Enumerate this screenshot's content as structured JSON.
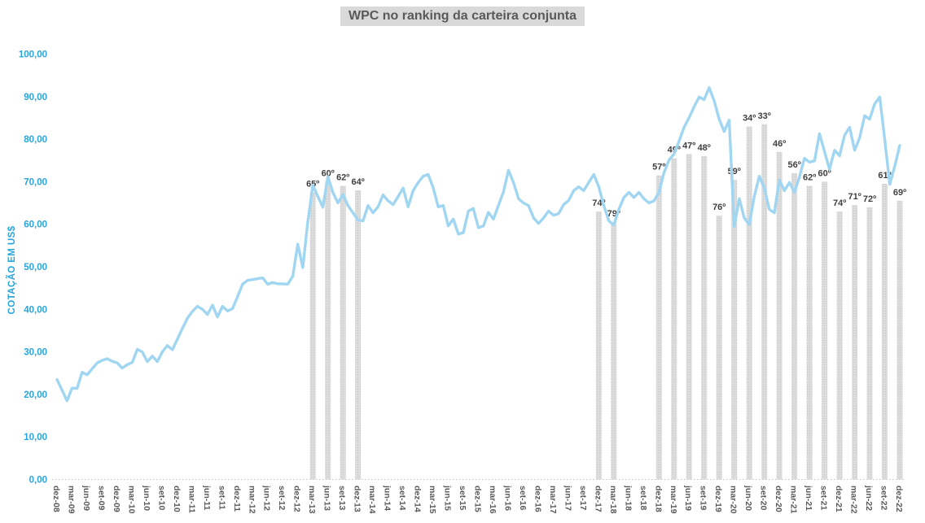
{
  "chart_data": {
    "type": "line",
    "title": "WPC no ranking da carteira conjunta",
    "ylabel": "COTAÇÃO EM US$",
    "ylim": [
      0,
      100
    ],
    "grid": false,
    "legend": "none",
    "y_tick_labels": [
      "0,00",
      "10,00",
      "20,00",
      "30,00",
      "40,00",
      "50,00",
      "60,00",
      "70,00",
      "80,00",
      "90,00",
      "100,00"
    ],
    "x_tick_labels": [
      "dez-08",
      "mar-09",
      "jun-09",
      "set-09",
      "dez-09",
      "mar-10",
      "jun-10",
      "set-10",
      "dez-10",
      "mar-11",
      "jun-11",
      "set-11",
      "dez-11",
      "mar-12",
      "jun-12",
      "set-12",
      "dez-12",
      "mar-13",
      "jun-13",
      "set-13",
      "dez-13",
      "mar-14",
      "jun-14",
      "set-14",
      "dez-14",
      "mar-15",
      "jun-15",
      "set-15",
      "dez-15",
      "mar-16",
      "jun-16",
      "set-16",
      "dez-16",
      "mar-17",
      "jun-17",
      "set-17",
      "dez-17",
      "mar-18",
      "jun-18",
      "set-18",
      "dez-18",
      "mar-19",
      "jun-19",
      "set-19",
      "dez-19",
      "mar-20",
      "jun-20",
      "set-20",
      "dez-20",
      "mar-21",
      "jun-21",
      "set-21",
      "dez-21",
      "mar-22",
      "jun-22",
      "set-22",
      "dez-22"
    ],
    "line_series": {
      "name": "cotacao-wpc-usd",
      "frequency": "monthly",
      "start": "dez-08",
      "end": "dez-22",
      "values": [
        23.5,
        21,
        18.5,
        21.5,
        21.4,
        25.2,
        24.6,
        26,
        27.4,
        28,
        28.4,
        27.8,
        27.4,
        26.2,
        27,
        27.5,
        30.6,
        30,
        27.7,
        29,
        27.7,
        30,
        31.5,
        30.5,
        33,
        35.5,
        37.9,
        39.5,
        40.7,
        40,
        38.8,
        41,
        38.2,
        40.7,
        39.6,
        40.2,
        43,
        45.9,
        46.8,
        47,
        47.2,
        47.4,
        45.9,
        46.3,
        46,
        46,
        45.9,
        47.8,
        55.3,
        49.8,
        60.6,
        69.2,
        66.5,
        64,
        71.2,
        67.5,
        65,
        67,
        64.4,
        62.7,
        61,
        60.8,
        64.4,
        62.7,
        64.1,
        66.9,
        65.5,
        64.6,
        66.5,
        68.5,
        64.1,
        67.9,
        69.8,
        71.3,
        71.7,
        68.5,
        64.1,
        64.4,
        59.6,
        61.2,
        57.7,
        58,
        63.1,
        63.7,
        59.2,
        59.6,
        62.8,
        61.2,
        64.4,
        67.6,
        72.7,
        69.8,
        66,
        65,
        64.4,
        61.5,
        60.2,
        61.5,
        63.1,
        62.1,
        62.5,
        64.6,
        65.6,
        67.9,
        68.8,
        67.9,
        69.8,
        71.7,
        68.8,
        64.4,
        60.8,
        59.8,
        63.5,
        66.3,
        67.5,
        66.3,
        67.5,
        66,
        65,
        65.5,
        67.5,
        72.1,
        75.1,
        76.5,
        79.5,
        82.8,
        85,
        87.6,
        89.9,
        89.3,
        92.1,
        89,
        84.7,
        81.8,
        84.5,
        59.5,
        66,
        61.5,
        59.9,
        66.5,
        71.3,
        68.5,
        63.5,
        62.7,
        70.4,
        67.9,
        69.8,
        67.5,
        71.1,
        75.5,
        74.6,
        74.9,
        81.3,
        77.1,
        72.9,
        77.4,
        76.1,
        80.9,
        82.8,
        77.4,
        80.3,
        85.5,
        84.7,
        88.3,
        89.9,
        80,
        69.4,
        73.6,
        78.5
      ]
    },
    "ranking_bars": {
      "name": "posicao-no-ranking",
      "note": "barras trimestrais; altura no eixo de cotação = 100 - ranking/2; rótulo = posição no ranking",
      "points": [
        {
          "x": "mar-13",
          "rank": 65,
          "label": "65º"
        },
        {
          "x": "jun-13",
          "rank": 60,
          "label": "60º"
        },
        {
          "x": "set-13",
          "rank": 62,
          "label": "62º"
        },
        {
          "x": "dez-13",
          "rank": 64,
          "label": "64º"
        },
        {
          "x": "dez-17",
          "rank": 74,
          "label": "74º"
        },
        {
          "x": "mar-18",
          "rank": 79,
          "label": "79º"
        },
        {
          "x": "dez-18",
          "rank": 57,
          "label": "57º"
        },
        {
          "x": "mar-19",
          "rank": 49,
          "label": "49º"
        },
        {
          "x": "jun-19",
          "rank": 47,
          "label": "47º"
        },
        {
          "x": "set-19",
          "rank": 48,
          "label": "48º"
        },
        {
          "x": "dez-19",
          "rank": 76,
          "label": "76º"
        },
        {
          "x": "mar-20",
          "rank": 59,
          "label": "59º"
        },
        {
          "x": "jun-20",
          "rank": 34,
          "label": "34º"
        },
        {
          "x": "set-20",
          "rank": 33,
          "label": "33º"
        },
        {
          "x": "dez-20",
          "rank": 46,
          "label": "46º"
        },
        {
          "x": "mar-21",
          "rank": 56,
          "label": "56º"
        },
        {
          "x": "jun-21",
          "rank": 62,
          "label": "62º"
        },
        {
          "x": "set-21",
          "rank": 60,
          "label": "60º"
        },
        {
          "x": "dez-21",
          "rank": 74,
          "label": "74º"
        },
        {
          "x": "mar-22",
          "rank": 71,
          "label": "71º"
        },
        {
          "x": "jun-22",
          "rank": 72,
          "label": "72º"
        },
        {
          "x": "set-22",
          "rank": 61,
          "label": "61º"
        },
        {
          "x": "dez-22",
          "rank": 69,
          "label": "69º"
        }
      ]
    },
    "colors": {
      "line": "#A0D6F2",
      "bar_fill": "#DCDCDC",
      "bar_dot": "#C6C6C6",
      "y_axis_text": "#29A5DC",
      "x_axis_text": "#595959",
      "title_text": "#595959",
      "title_bg": "#D9D9D9",
      "rank_label": "#3F3F3F",
      "baseline": "#C0C0C0"
    }
  }
}
